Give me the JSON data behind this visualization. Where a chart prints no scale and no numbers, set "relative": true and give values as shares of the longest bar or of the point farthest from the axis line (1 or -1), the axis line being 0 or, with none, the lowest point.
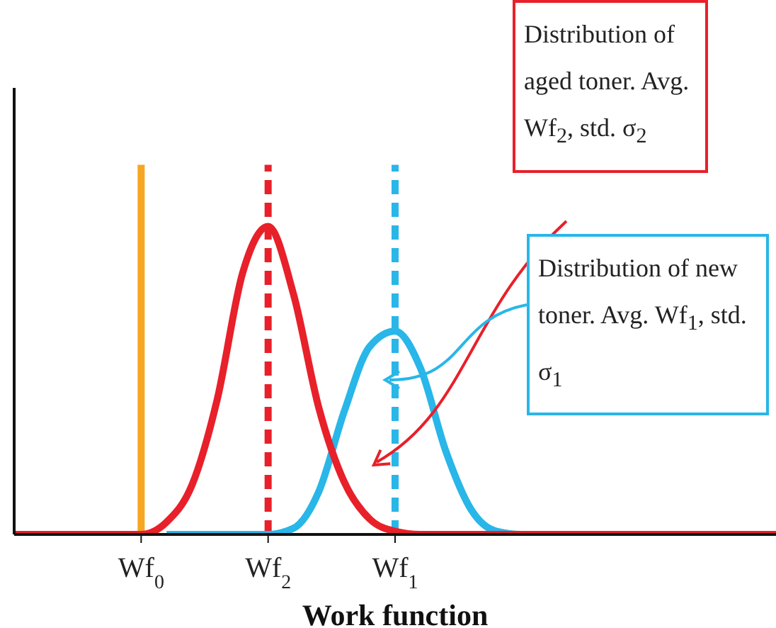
{
  "chart_data": {
    "type": "line",
    "relative": true,
    "xlabel": "Work function",
    "categories": [
      null,
      null,
      null,
      null,
      null,
      "Wf$_{0}$",
      null,
      null,
      null,
      null,
      "Wf$_{2}$",
      null,
      null,
      null,
      null,
      "Wf$_{1}$",
      null,
      null,
      null,
      null,
      null,
      null,
      null,
      null,
      null,
      null,
      null,
      null,
      null,
      null,
      null
    ],
    "series": [
      {
        "color": "#29b6e8",
        "values": [
          null,
          null,
          null,
          null,
          null,
          null,
          0,
          0,
          0,
          0,
          0,
          0.02,
          0.14,
          0.4,
          0.61,
          0.66,
          0.54,
          0.27,
          0.08,
          0.01,
          0,
          0,
          null,
          null,
          null,
          null,
          null,
          null,
          null,
          null,
          null
        ]
      },
      {
        "color": "#e8202a",
        "values": [
          0,
          0,
          0,
          0,
          0,
          0,
          0.04,
          0.16,
          0.44,
          0.85,
          1,
          0.78,
          0.41,
          0.17,
          0.05,
          0.01,
          0,
          0,
          0,
          0,
          0,
          0,
          0,
          0,
          0,
          0,
          0,
          0,
          0,
          0,
          0
        ]
      }
    ],
    "ref_lines": [
      {
        "axis": "x",
        "value": "Wf$_{0}$",
        "color": "#f5a623",
        "line_style": "solid"
      },
      {
        "axis": "x",
        "value": "Wf$_{2}$",
        "color": "#e8202a",
        "line_style": "dashed"
      },
      {
        "axis": "x",
        "value": "Wf$_{1}$",
        "color": "#29b6e8",
        "line_style": "dashed"
      }
    ],
    "annotations": [
      "Distribution of aged toner. Avg. Wf$_{2}$, std. σ$_{2}$",
      "Distribution of new toner. Avg. Wf$_{1}$, std. σ$_{1}$"
    ],
    "grid": false,
    "legend": false,
    "marker": "none",
    "line_style": "solid"
  }
}
